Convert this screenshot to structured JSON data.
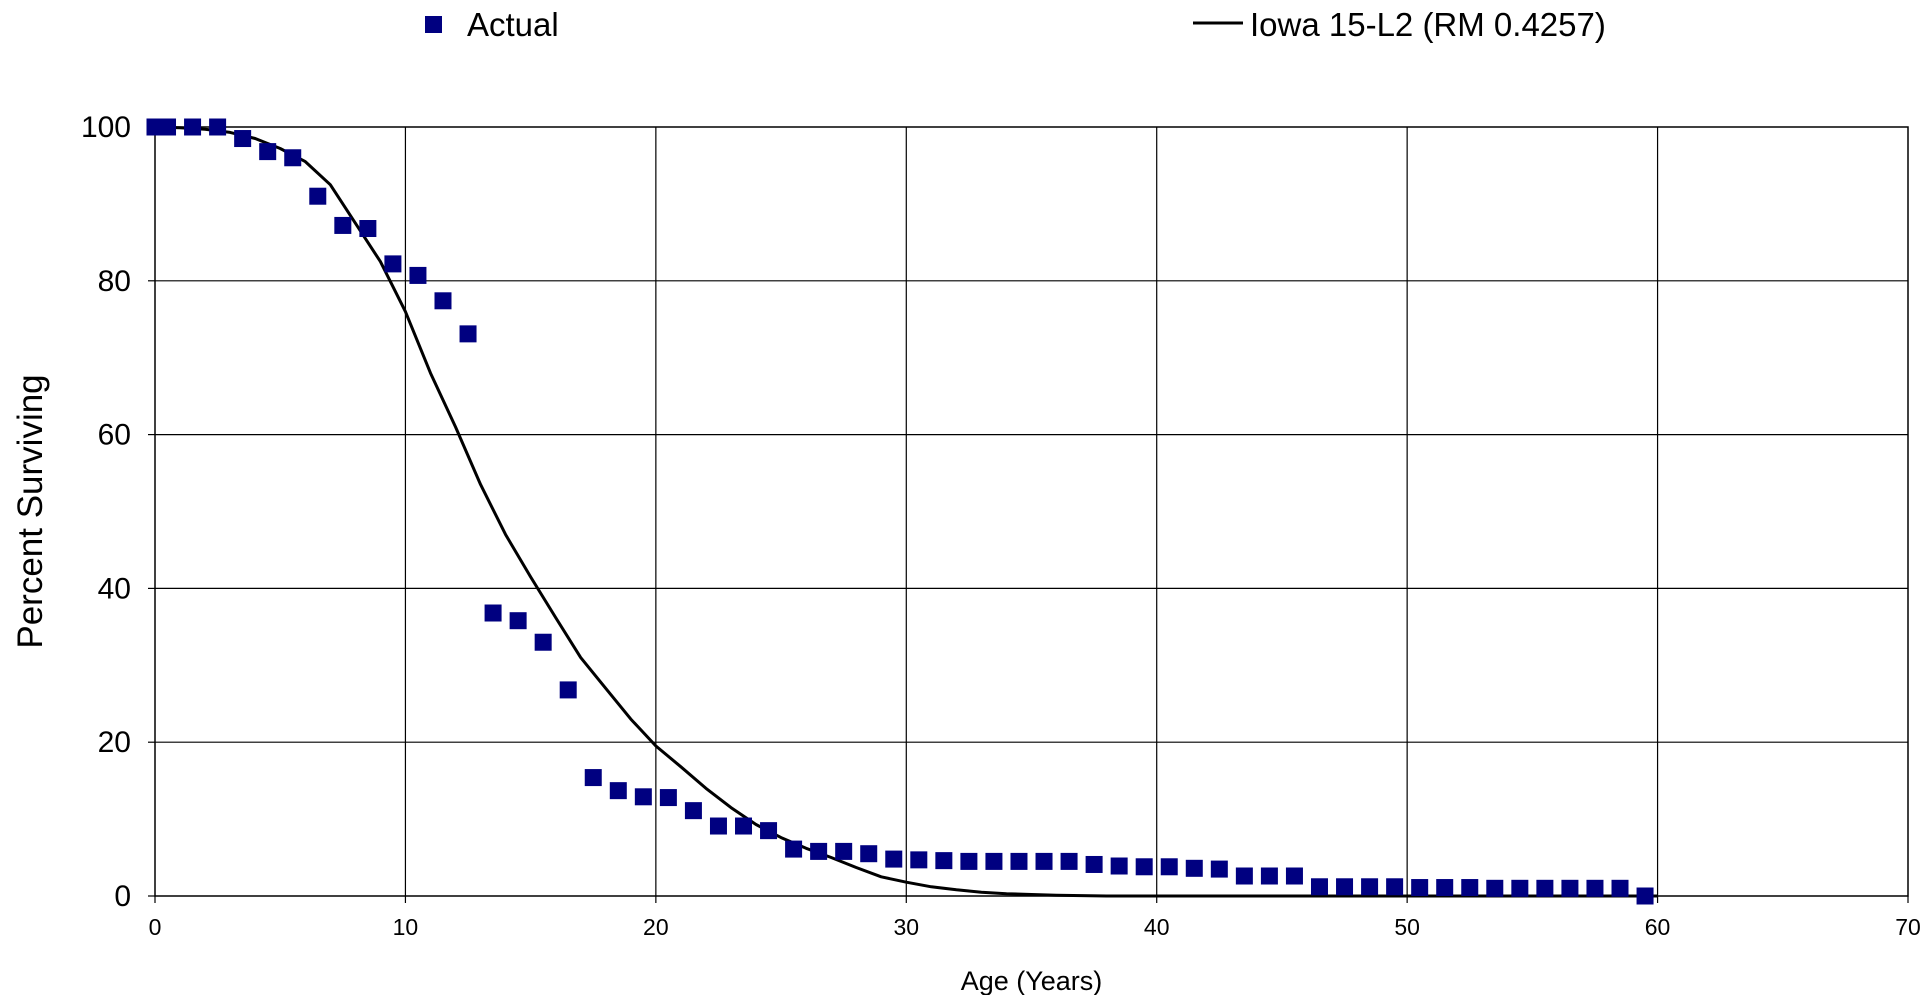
{
  "chart_data": {
    "type": "scatter",
    "title": "",
    "xlabel": "Age (Years)",
    "ylabel": "Percent Surviving",
    "xlim": [
      0,
      70
    ],
    "ylim": [
      0,
      100
    ],
    "xticks": [
      0,
      10,
      20,
      30,
      40,
      50,
      60,
      70
    ],
    "yticks": [
      0,
      20,
      40,
      60,
      80,
      100
    ],
    "grid": true,
    "legend_position": "top",
    "series": [
      {
        "name": "Actual",
        "kind": "scatter",
        "marker": "square",
        "color": "#000080",
        "x": [
          0,
          0.5,
          1.5,
          2.5,
          3.5,
          4.5,
          5.5,
          6.5,
          7.5,
          8.5,
          9.5,
          10.5,
          11.5,
          12.5,
          13.5,
          14.5,
          15.5,
          16.5,
          17.5,
          18.5,
          19.5,
          20.5,
          21.5,
          22.5,
          23.5,
          24.5,
          25.5,
          26.5,
          27.5,
          28.5,
          29.5,
          30.5,
          31.5,
          32.5,
          33.5,
          34.5,
          35.5,
          36.5,
          37.5,
          38.5,
          39.5,
          40.5,
          41.5,
          42.5,
          43.5,
          44.5,
          45.5,
          46.5,
          47.5,
          48.5,
          49.5,
          50.5,
          51.5,
          52.5,
          53.5,
          54.5,
          55.5,
          56.5,
          57.5,
          58.5,
          59.5
        ],
        "y": [
          100,
          100,
          100,
          100,
          98.5,
          96.8,
          96,
          91,
          87.2,
          86.8,
          82.2,
          80.7,
          77.4,
          73.1,
          36.8,
          35.8,
          33,
          26.8,
          15.4,
          13.7,
          12.9,
          12.8,
          11.1,
          9.1,
          9.1,
          8.5,
          6.1,
          5.8,
          5.8,
          5.5,
          4.8,
          4.7,
          4.6,
          4.5,
          4.5,
          4.5,
          4.5,
          4.5,
          4.1,
          3.9,
          3.8,
          3.8,
          3.6,
          3.5,
          2.6,
          2.6,
          2.6,
          1.2,
          1.2,
          1.2,
          1.2,
          1.1,
          1.1,
          1.1,
          1.0,
          1.0,
          1.0,
          1.0,
          1.0,
          1.0,
          0
        ]
      },
      {
        "name": "Iowa 15-L2 (RM 0.4257)",
        "kind": "line",
        "color": "#000000",
        "x": [
          0,
          1,
          2,
          3,
          4,
          5,
          6,
          7,
          8,
          9,
          10,
          11,
          12,
          13,
          14,
          15,
          16,
          17,
          18,
          19,
          20,
          21,
          22,
          23,
          24,
          25,
          26,
          27,
          28,
          29,
          30,
          31,
          32,
          33,
          34,
          35,
          36,
          37,
          38,
          40,
          45,
          50,
          60
        ],
        "y": [
          100,
          99.9,
          99.7,
          99.3,
          98.5,
          97.2,
          95.5,
          92.5,
          87.5,
          82.5,
          76,
          68,
          61,
          53.5,
          47,
          41.5,
          36.2,
          31,
          27,
          23,
          19.5,
          16.8,
          14,
          11.5,
          9.3,
          7.6,
          6.2,
          5,
          3.7,
          2.5,
          1.8,
          1.2,
          0.8,
          0.5,
          0.3,
          0.2,
          0.1,
          0.05,
          0,
          0,
          0,
          0,
          0
        ]
      }
    ]
  }
}
